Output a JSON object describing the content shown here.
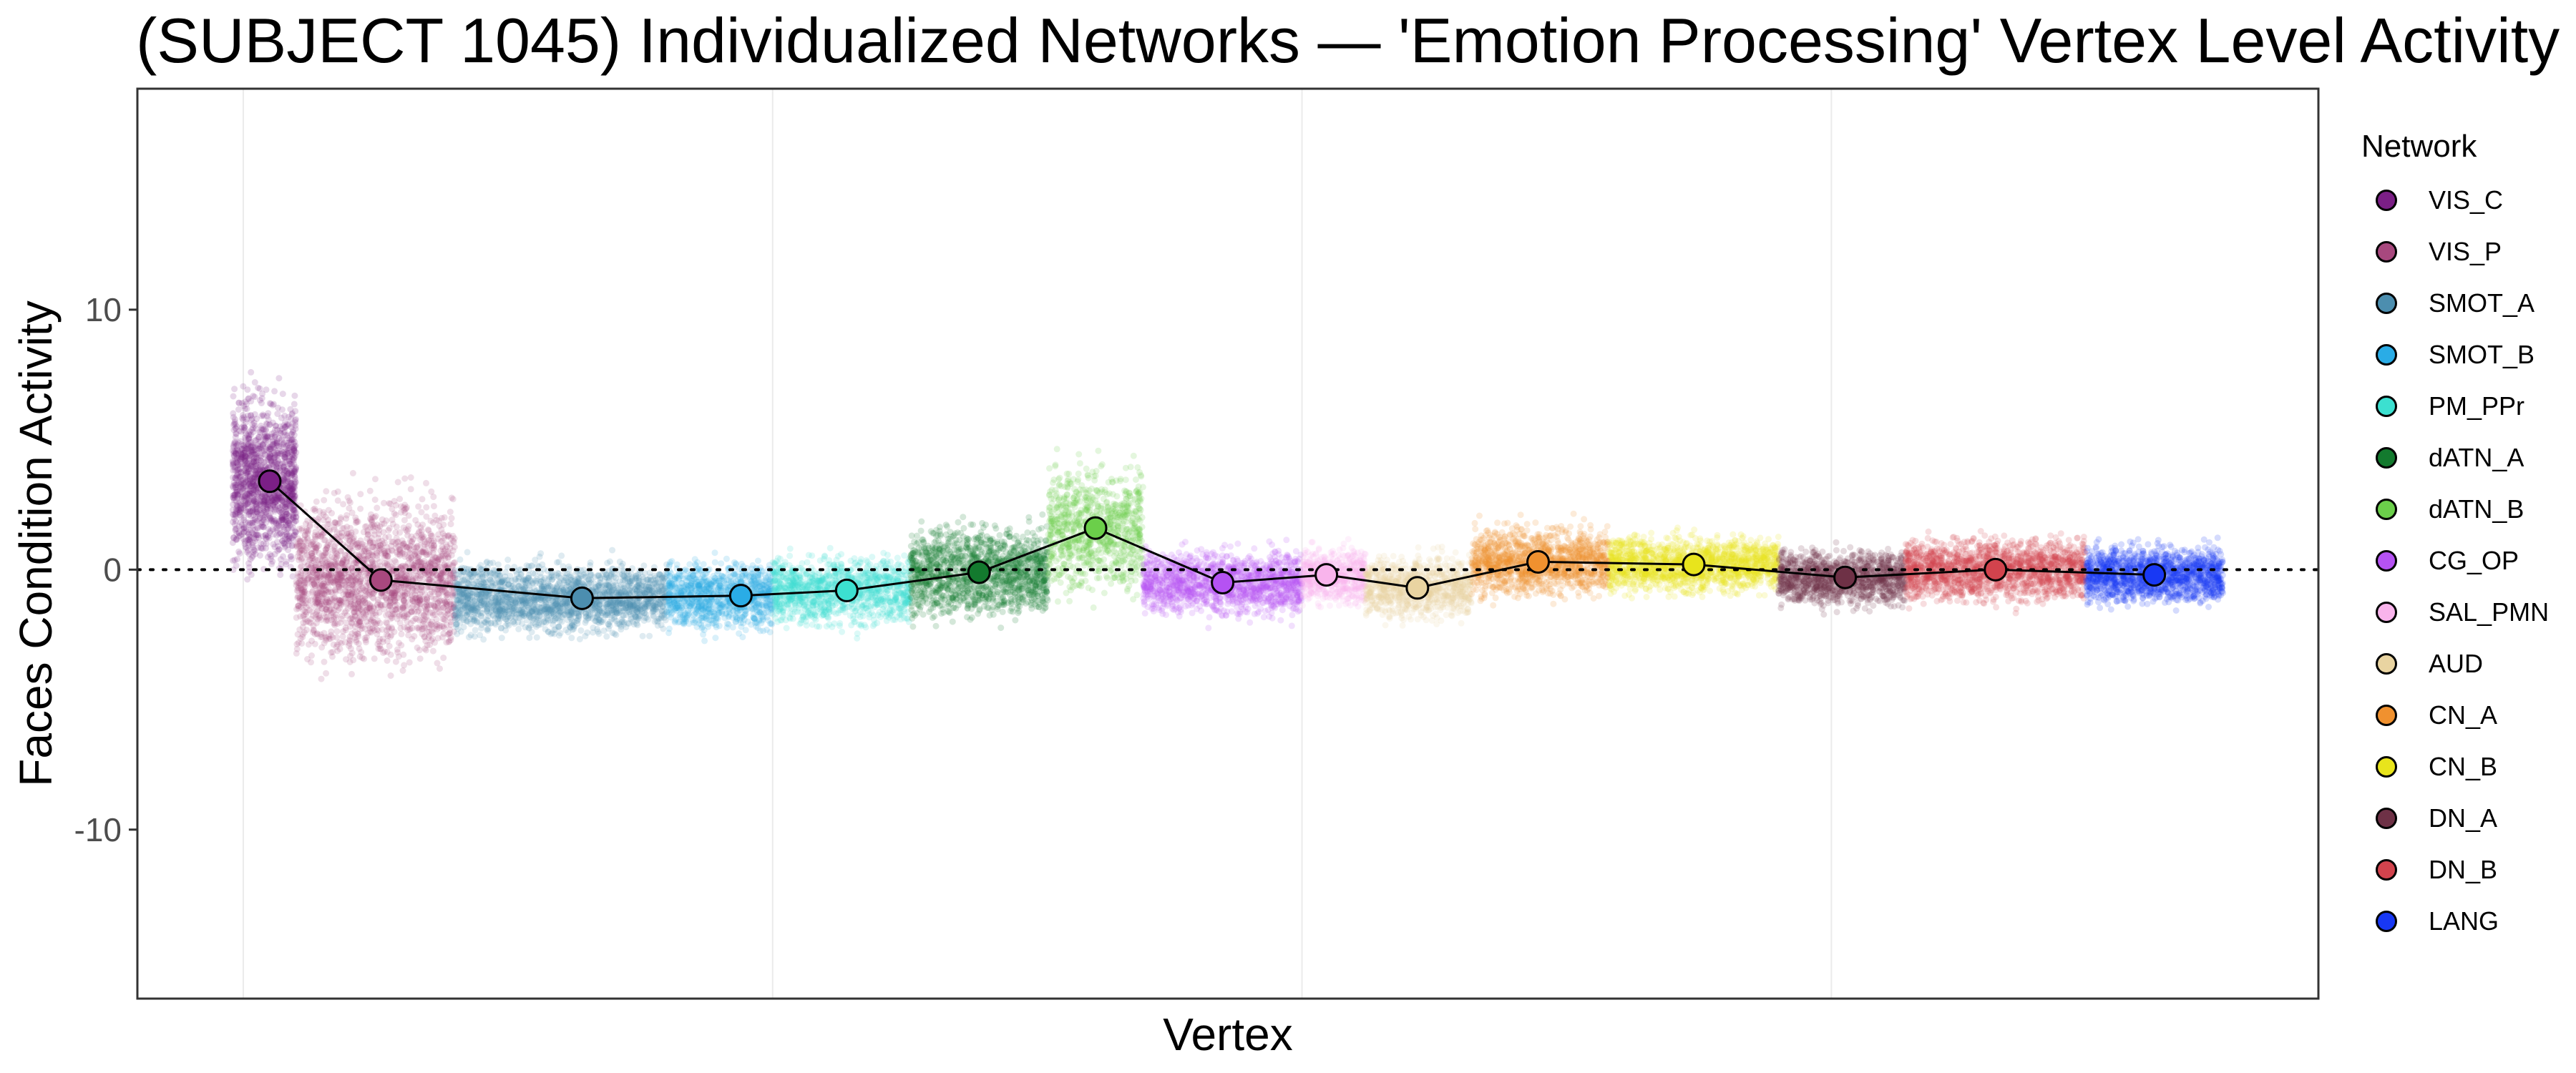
{
  "chart_data": {
    "type": "scatter",
    "title": "(SUBJECT 1045) Individualized Networks — 'Emotion Processing' Vertex Level Activity",
    "xlabel": "Vertex",
    "ylabel": "Faces Condition Activity",
    "ylim": [
      -16.5,
      18.5
    ],
    "yticks": [
      {
        "value": 10,
        "label": "10"
      },
      {
        "value": 0,
        "label": "0"
      },
      {
        "value": -10,
        "label": "-10"
      }
    ],
    "xlim": [
      0,
      20600
    ],
    "x_grid": [
      1000,
      6000,
      11000,
      16000
    ],
    "reference_line": 0,
    "legend_title": "Network",
    "legend_position": "right",
    "series": [
      {
        "name": "VIS_C",
        "color": "#7B1F86",
        "x_range": [
          900,
          1500
        ],
        "mean": 3.4,
        "spread": 2.6,
        "count": 1400
      },
      {
        "name": "VIS_P",
        "color": "#A8487E",
        "x_range": [
          1500,
          3000
        ],
        "mean": -0.4,
        "spread": 2.5,
        "count": 2000
      },
      {
        "name": "SMOT_A",
        "color": "#4C8EAF",
        "x_range": [
          3000,
          5000
        ],
        "mean": -1.1,
        "spread": 1.1,
        "count": 2000
      },
      {
        "name": "SMOT_B",
        "color": "#2AACE6",
        "x_range": [
          5000,
          6000
        ],
        "mean": -1.0,
        "spread": 1.1,
        "count": 1000
      },
      {
        "name": "PM_PPr",
        "color": "#3CE0D0",
        "x_range": [
          6000,
          7300
        ],
        "mean": -0.8,
        "spread": 1.1,
        "count": 1200
      },
      {
        "name": "dATN_A",
        "color": "#137A2E",
        "x_range": [
          7300,
          8600
        ],
        "mean": -0.1,
        "spread": 1.4,
        "count": 1400
      },
      {
        "name": "dATN_B",
        "color": "#6BCF4A",
        "x_range": [
          8600,
          9500
        ],
        "mean": 1.6,
        "spread": 2.0,
        "count": 900
      },
      {
        "name": "CG_OP",
        "color": "#B552F3",
        "x_range": [
          9500,
          11000
        ],
        "mean": -0.5,
        "spread": 1.0,
        "count": 1400
      },
      {
        "name": "SAL_PMN",
        "color": "#F9B4EC",
        "x_range": [
          11000,
          11600
        ],
        "mean": -0.2,
        "spread": 0.9,
        "count": 600
      },
      {
        "name": "AUD",
        "color": "#E9D4A1",
        "x_range": [
          11600,
          12600
        ],
        "mean": -0.7,
        "spread": 1.0,
        "count": 900
      },
      {
        "name": "CN_A",
        "color": "#F0912F",
        "x_range": [
          12600,
          13900
        ],
        "mean": 0.3,
        "spread": 1.1,
        "count": 1300
      },
      {
        "name": "CN_B",
        "color": "#E8E41C",
        "x_range": [
          13900,
          15500
        ],
        "mean": 0.2,
        "spread": 0.9,
        "count": 1600
      },
      {
        "name": "DN_A",
        "color": "#6E3146",
        "x_range": [
          15500,
          16700
        ],
        "mean": -0.3,
        "spread": 0.9,
        "count": 1200
      },
      {
        "name": "DN_B",
        "color": "#D2434D",
        "x_range": [
          16700,
          18400
        ],
        "mean": 0.0,
        "spread": 1.0,
        "count": 1700
      },
      {
        "name": "LANG",
        "color": "#1838F4",
        "x_range": [
          18400,
          19700
        ],
        "mean": -0.2,
        "spread": 0.9,
        "count": 1400
      }
    ],
    "means": [
      {
        "name": "VIS_C",
        "x": 1250,
        "y": 3.4
      },
      {
        "name": "VIS_P",
        "x": 2300,
        "y": -0.4
      },
      {
        "name": "SMOT_A",
        "x": 4200,
        "y": -1.1
      },
      {
        "name": "SMOT_B",
        "x": 5700,
        "y": -1.0
      },
      {
        "name": "PM_PPr",
        "x": 6700,
        "y": -0.8
      },
      {
        "name": "dATN_A",
        "x": 7950,
        "y": -0.1
      },
      {
        "name": "dATN_B",
        "x": 9050,
        "y": 1.6
      },
      {
        "name": "CG_OP",
        "x": 10250,
        "y": -0.5
      },
      {
        "name": "SAL_PMN",
        "x": 11230,
        "y": -0.2
      },
      {
        "name": "AUD",
        "x": 12090,
        "y": -0.7
      },
      {
        "name": "CN_A",
        "x": 13230,
        "y": 0.3
      },
      {
        "name": "CN_B",
        "x": 14700,
        "y": 0.2
      },
      {
        "name": "DN_A",
        "x": 16130,
        "y": -0.3
      },
      {
        "name": "DN_B",
        "x": 17550,
        "y": 0.0
      },
      {
        "name": "LANG",
        "x": 19050,
        "y": -0.2
      }
    ]
  }
}
